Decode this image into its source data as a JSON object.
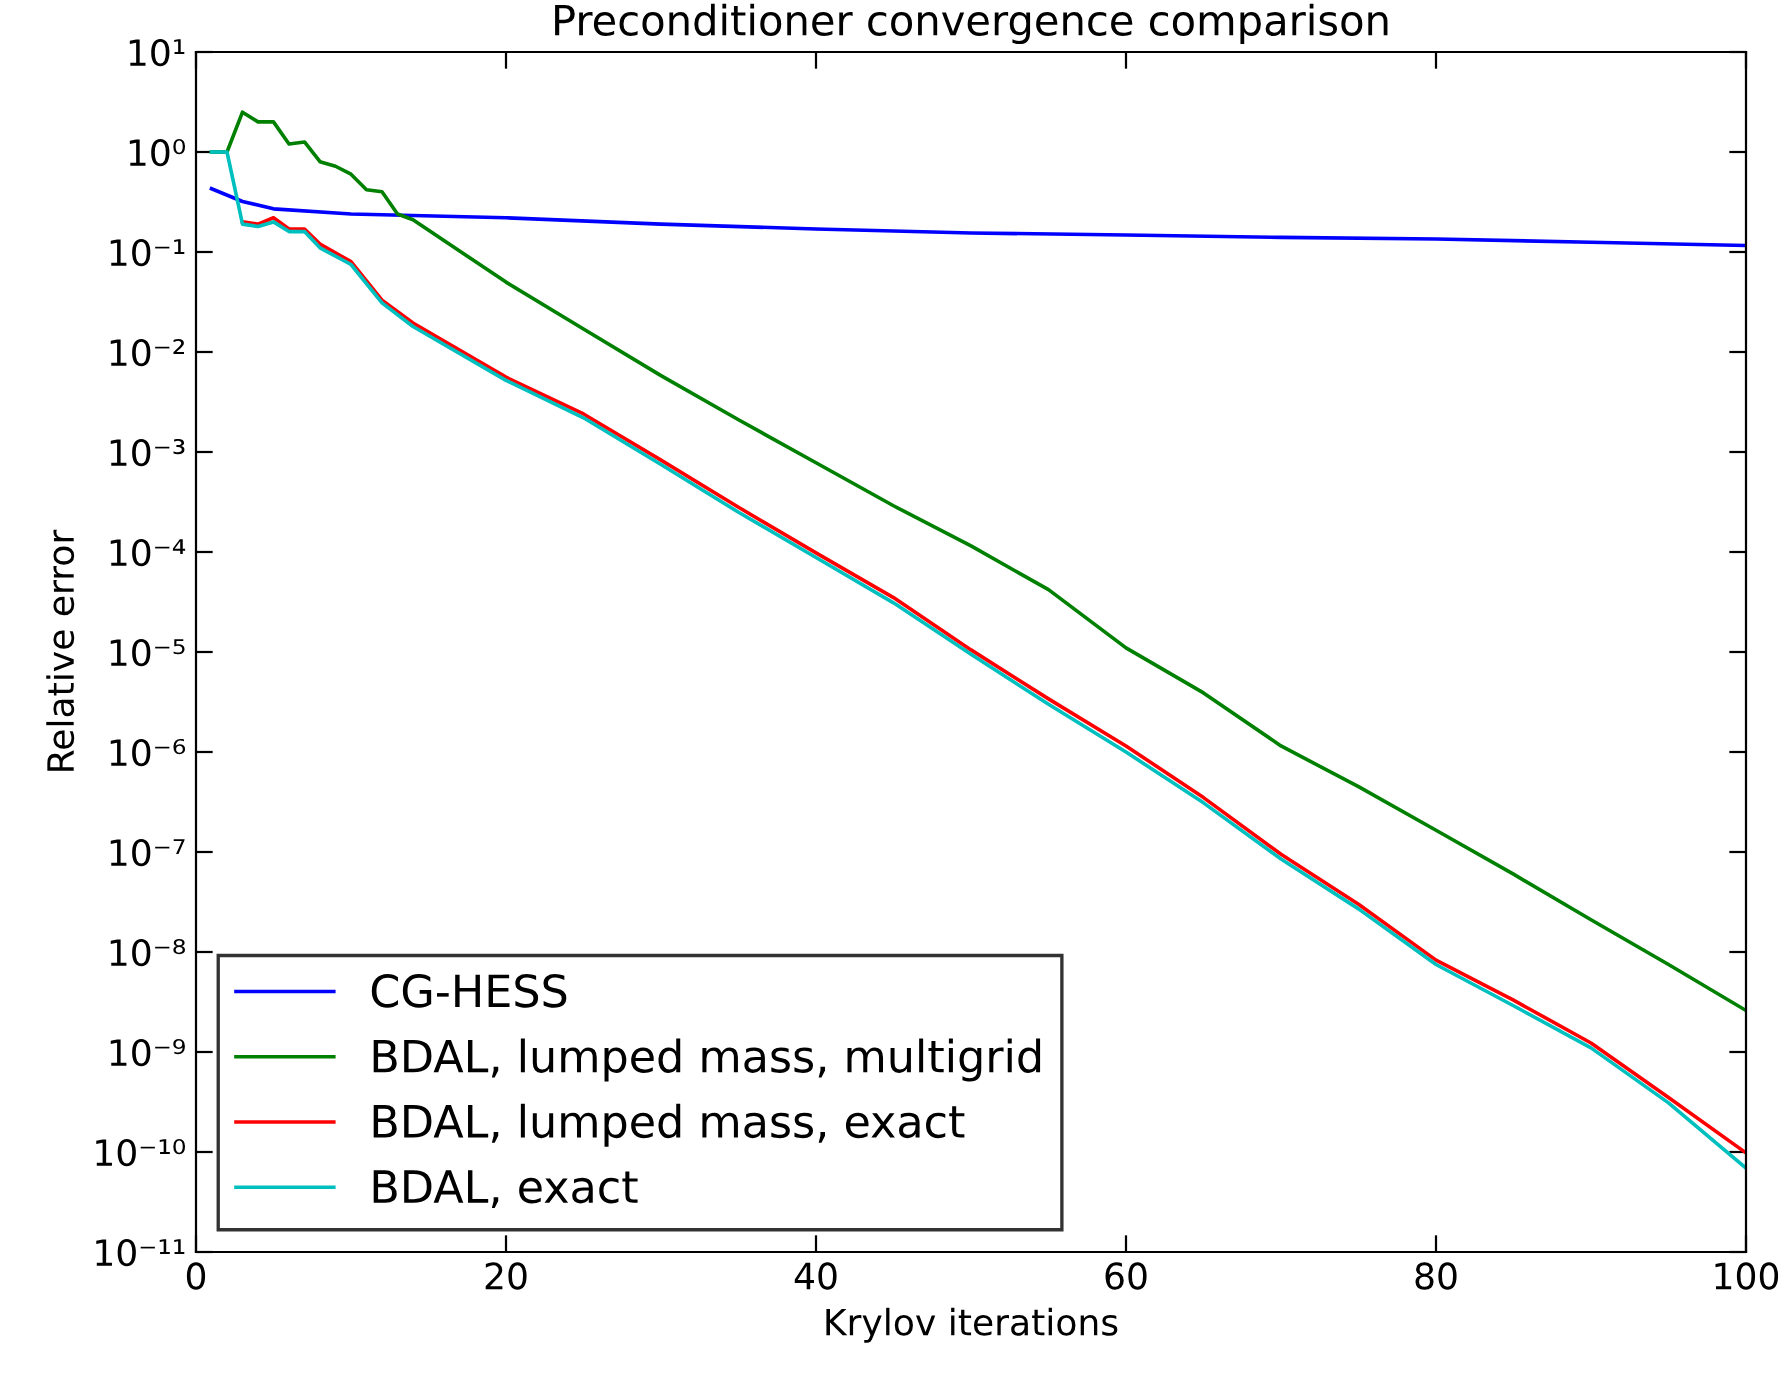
{
  "chart_data": {
    "type": "line",
    "title": "Preconditioner convergence comparison",
    "xlabel": "Krylov iterations",
    "ylabel": "Relative error",
    "log": "y",
    "xlim": [
      0,
      100
    ],
    "xticks": [
      0,
      20,
      40,
      60,
      80,
      100
    ],
    "ylim": [
      1e-11,
      10
    ],
    "yticks": [
      {
        "value": 10,
        "label": "10¹"
      },
      {
        "value": 1,
        "label": "10⁰"
      },
      {
        "value": 0.1,
        "label": "10⁻¹"
      },
      {
        "value": 0.01,
        "label": "10⁻²"
      },
      {
        "value": 0.001,
        "label": "10⁻³"
      },
      {
        "value": 0.0001,
        "label": "10⁻⁴"
      },
      {
        "value": 1e-05,
        "label": "10⁻⁵"
      },
      {
        "value": 1e-06,
        "label": "10⁻⁶"
      },
      {
        "value": 1e-07,
        "label": "10⁻⁷"
      },
      {
        "value": 1e-08,
        "label": "10⁻⁸"
      },
      {
        "value": 1e-09,
        "label": "10⁻⁹"
      },
      {
        "value": 1e-10,
        "label": "10⁻¹⁰"
      },
      {
        "value": 1e-11,
        "label": "10⁻¹¹"
      }
    ],
    "grid": false,
    "legend": "bottom left",
    "marker": "none",
    "line_style": "solid",
    "series": [
      {
        "name": "CG-HESS",
        "color": "#0000ff",
        "x": [
          1,
          3,
          5,
          10,
          20,
          30,
          40,
          50,
          60,
          70,
          80,
          90,
          100
        ],
        "values": [
          0.43,
          0.32,
          0.27,
          0.24,
          0.22,
          0.19,
          0.17,
          0.155,
          0.148,
          0.14,
          0.135,
          0.125,
          0.116
        ]
      },
      {
        "name": "BDAL, lumped mass, multigrid",
        "color": "#008000",
        "x": [
          1,
          2,
          3,
          4,
          5,
          6,
          7,
          8,
          9,
          10,
          11,
          12,
          13,
          14,
          20,
          25,
          30,
          35,
          40,
          45,
          50,
          55,
          60,
          65,
          70,
          75,
          80,
          85,
          90,
          95,
          100
        ],
        "values": [
          1.0,
          1.0,
          2.5,
          2.0,
          2.0,
          1.2,
          1.26,
          0.8,
          0.72,
          0.6,
          0.42,
          0.4,
          0.24,
          0.21,
          0.05,
          0.017,
          0.0058,
          0.0021,
          0.00078,
          0.00029,
          0.000115,
          4.2e-05,
          1.1e-05,
          3.9e-06,
          1.15e-06,
          4.5e-07,
          1.65e-07,
          6e-08,
          2.1e-08,
          7.5e-09,
          2.6e-09
        ]
      },
      {
        "name": "BDAL, lumped mass, exact",
        "color": "#ff0000",
        "x": [
          3,
          4,
          5,
          6,
          7,
          8,
          10,
          12,
          14,
          20,
          25,
          30,
          35,
          40,
          45,
          50,
          55,
          60,
          65,
          70,
          75,
          80,
          85,
          90,
          95,
          100
        ],
        "values": [
          0.2,
          0.19,
          0.22,
          0.17,
          0.17,
          0.12,
          0.08,
          0.033,
          0.0195,
          0.0056,
          0.0024,
          0.00083,
          0.00028,
          9.8e-05,
          3.5e-05,
          1.05e-05,
          3.4e-06,
          1.15e-06,
          3.5e-07,
          9.5e-08,
          3e-08,
          8.3e-09,
          3.3e-09,
          1.23e-09,
          3.5e-10,
          9.8e-11
        ]
      },
      {
        "name": "BDAL, exact",
        "color": "#00bfbf",
        "x": [
          1,
          2,
          3,
          4,
          5,
          6,
          7,
          8,
          10,
          12,
          14,
          20,
          25,
          30,
          35,
          40,
          45,
          50,
          55,
          60,
          65,
          70,
          75,
          80,
          85,
          90,
          95,
          100
        ],
        "values": [
          1.0,
          1.0,
          0.19,
          0.18,
          0.2,
          0.16,
          0.16,
          0.11,
          0.075,
          0.031,
          0.018,
          0.0052,
          0.0022,
          0.00075,
          0.00025,
          8.8e-05,
          3.1e-05,
          9.5e-06,
          3e-06,
          1e-06,
          3.1e-07,
          8.5e-08,
          2.7e-08,
          7.5e-09,
          2.9e-09,
          1.1e-09,
          3.1e-10,
          6.9e-11
        ]
      }
    ]
  }
}
